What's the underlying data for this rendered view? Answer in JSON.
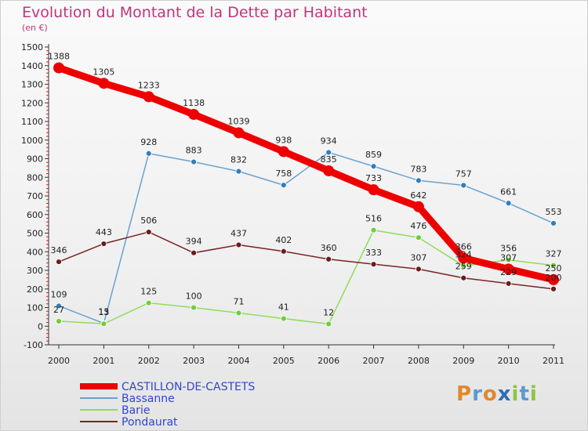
{
  "chart_data": {
    "type": "line",
    "title": "Evolution du Montant de la Dette par Habitant",
    "unit_label": "(en €)",
    "categories": [
      "2000",
      "2001",
      "2002",
      "2003",
      "2004",
      "2005",
      "2006",
      "2007",
      "2008",
      "2009",
      "2010",
      "2011"
    ],
    "yticks": [
      "-100",
      "0",
      "100",
      "200",
      "300",
      "400",
      "500",
      "600",
      "700",
      "800",
      "900",
      "1000",
      "1100",
      "1200",
      "1300",
      "1400",
      "1500"
    ],
    "ylim": [
      -100,
      1500
    ],
    "grid": false,
    "legend_position": "bottom-left",
    "series": [
      {
        "name": "CASTILLON-DE-CASTETS",
        "color": "#ee0000",
        "marker": "#ee0000",
        "values": [
          1388,
          1305,
          1233,
          1138,
          1039,
          938,
          835,
          733,
          642,
          366,
          307,
          250
        ],
        "labels": [
          "1388",
          "1305",
          "1233",
          "1138",
          "1039",
          "938",
          "835",
          "733",
          "642",
          "366",
          "307",
          "250"
        ]
      },
      {
        "name": "Bassanne",
        "color": "#6aa2d0",
        "marker": "#2f7ec0",
        "values": [
          109,
          15,
          928,
          883,
          832,
          758,
          934,
          859,
          783,
          757,
          661,
          553
        ],
        "labels": [
          "109",
          "15",
          "928",
          "883",
          "832",
          "758",
          "934",
          "859",
          "783",
          "757",
          "661",
          "553"
        ]
      },
      {
        "name": "Barie",
        "color": "#8fdc5a",
        "marker": "#72cc3c",
        "values": [
          27,
          13,
          125,
          100,
          71,
          41,
          12,
          516,
          476,
          324,
          356,
          327
        ],
        "labels": [
          "27",
          "13",
          "125",
          "100",
          "71",
          "41",
          "12",
          "516",
          "476",
          "324",
          "356",
          "327"
        ]
      },
      {
        "name": "Pondaurat",
        "color": "#7a2424",
        "marker": "#6b1c1c",
        "values": [
          346,
          443,
          506,
          394,
          437,
          402,
          360,
          333,
          307,
          259,
          229,
          200
        ],
        "labels": [
          "346",
          "443",
          "506",
          "394",
          "437",
          "402",
          "360",
          "333",
          "307",
          "259",
          "229",
          "200"
        ]
      }
    ]
  },
  "brand": {
    "letters": [
      "P",
      "r",
      "o",
      "x",
      "i",
      "t",
      "i"
    ],
    "colors": [
      "#e2872c",
      "#5a9bd4",
      "#e2872c",
      "#2c6fb5",
      "#8cc63f",
      "#5a9bd4",
      "#8cc63f"
    ]
  }
}
